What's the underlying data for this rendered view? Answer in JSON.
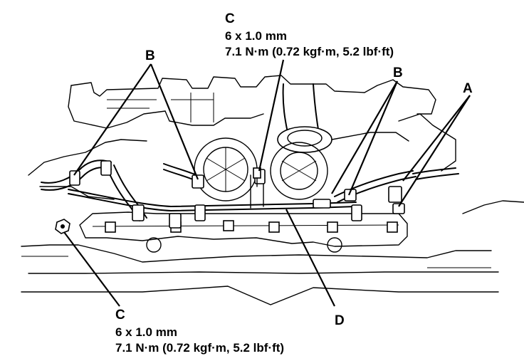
{
  "callouts": {
    "a": {
      "letter": "A"
    },
    "b_left": {
      "letter": "B"
    },
    "b_right": {
      "letter": "B"
    },
    "c_top": {
      "letter": "C",
      "size": "6 x 1.0 mm",
      "torque": "7.1 N·m (0.72 kgf·m, 5.2 lbf·ft)"
    },
    "c_bottom": {
      "letter": "C",
      "size": "6 x 1.0 mm",
      "torque": "7.1 N·m (0.72 kgf·m, 5.2 lbf·ft)"
    },
    "d": {
      "letter": "D"
    }
  }
}
